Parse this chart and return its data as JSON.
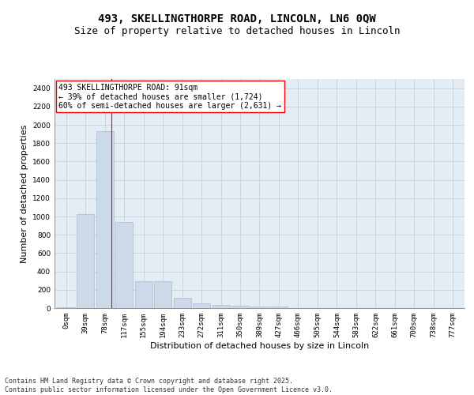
{
  "title_line1": "493, SKELLINGTHORPE ROAD, LINCOLN, LN6 0QW",
  "title_line2": "Size of property relative to detached houses in Lincoln",
  "xlabel": "Distribution of detached houses by size in Lincoln",
  "ylabel": "Number of detached properties",
  "categories": [
    "0sqm",
    "39sqm",
    "78sqm",
    "117sqm",
    "155sqm",
    "194sqm",
    "233sqm",
    "272sqm",
    "311sqm",
    "350sqm",
    "389sqm",
    "427sqm",
    "466sqm",
    "505sqm",
    "544sqm",
    "583sqm",
    "622sqm",
    "661sqm",
    "700sqm",
    "738sqm",
    "777sqm"
  ],
  "values": [
    10,
    1030,
    1930,
    940,
    290,
    290,
    110,
    55,
    35,
    25,
    20,
    20,
    0,
    0,
    0,
    0,
    0,
    0,
    0,
    0,
    0
  ],
  "bar_color": "#ccd9e8",
  "bar_edge_color": "#a8bdd0",
  "grid_color": "#bfcad8",
  "background_color": "#e4ecf4",
  "annotation_box_text": "493 SKELLINGTHORPE ROAD: 91sqm\n← 39% of detached houses are smaller (1,724)\n60% of semi-detached houses are larger (2,631) →",
  "annotation_box_color": "white",
  "annotation_box_edge_color": "red",
  "vline_x": 2.35,
  "vline_color": "red",
  "ylim": [
    0,
    2500
  ],
  "yticks": [
    0,
    200,
    400,
    600,
    800,
    1000,
    1200,
    1400,
    1600,
    1800,
    2000,
    2200,
    2400
  ],
  "footer_text": "Contains HM Land Registry data © Crown copyright and database right 2025.\nContains public sector information licensed under the Open Government Licence v3.0.",
  "title_fontsize": 10,
  "subtitle_fontsize": 9,
  "axis_label_fontsize": 8,
  "tick_fontsize": 6.5,
  "annotation_fontsize": 7,
  "footer_fontsize": 6
}
